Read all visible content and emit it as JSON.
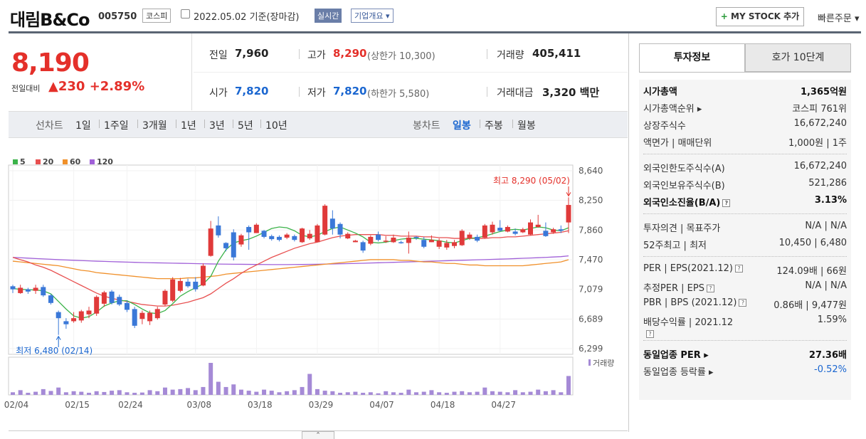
{
  "header": {
    "name": "대림B&Co",
    "code": "005750",
    "market": "코스피",
    "date": "2022.05.02 기준(장마감)",
    "realtime": "실시간",
    "company_info": "기업개요 ▾",
    "mystock": "MY STOCK 추가",
    "mystock_plus": "+",
    "quick_order": "빠른주문 ▾"
  },
  "price": {
    "current": "8,190",
    "diff_label": "전일대비",
    "diff_value": "▲230",
    "diff_pct": "+2.89%"
  },
  "stats": {
    "prev_label": "전일",
    "prev": "7,960",
    "high_label": "고가",
    "high": "8,290",
    "high_sub": "(상한가 10,300)",
    "vol_label": "거래량",
    "vol": "405,411",
    "open_label": "시가",
    "open": "7,820",
    "low_label": "저가",
    "low": "7,820",
    "low_sub": "(하한가 5,580)",
    "amt_label": "거래대금",
    "amt": "3,320 백만"
  },
  "toolbar": {
    "line_label": "선차트",
    "line_periods": [
      "1일",
      "1주일",
      "3개월",
      "1년",
      "3년",
      "5년",
      "10년"
    ],
    "candle_label": "봉차트",
    "candle_periods": [
      "일봉",
      "주봉",
      "월봉"
    ]
  },
  "chart_data": {
    "type": "candlestick",
    "legend": [
      {
        "name": "5",
        "color": "#3cb34a"
      },
      {
        "name": "20",
        "color": "#e85050"
      },
      {
        "name": "60",
        "color": "#f0902a"
      },
      {
        "name": "120",
        "color": "#a060d8"
      }
    ],
    "y_ticks": [
      "8,640",
      "8,250",
      "7,860",
      "7,470",
      "7,079",
      "6,689",
      "6,299"
    ],
    "ylim": [
      6299,
      8640
    ],
    "x_ticks": [
      "02/04",
      "02/15",
      "02/24",
      "03/08",
      "03/18",
      "03/29",
      "04/07",
      "04/18",
      "04/27"
    ],
    "high_annotation": "최고 8,290 (05/02)",
    "low_annotation": "최저 6,480 (02/14)",
    "volume_label": "거래량",
    "candles": [
      [
        7120,
        7080,
        7140,
        7030
      ],
      [
        7030,
        7100,
        7140,
        7020
      ],
      [
        7080,
        7050,
        7100,
        7020
      ],
      [
        7060,
        7100,
        7140,
        7020
      ],
      [
        7110,
        7000,
        7140,
        6980
      ],
      [
        7000,
        6900,
        7020,
        6880
      ],
      [
        6780,
        6700,
        6800,
        6480
      ],
      [
        6660,
        6620,
        6700,
        6560
      ],
      [
        6660,
        6700,
        6780,
        6640
      ],
      [
        6670,
        6790,
        6810,
        6640
      ],
      [
        6750,
        6800,
        6850,
        6700
      ],
      [
        6760,
        6980,
        7000,
        6730
      ],
      [
        6890,
        7040,
        7060,
        6850
      ],
      [
        7050,
        6900,
        7070,
        6880
      ],
      [
        6980,
        6880,
        7010,
        6860
      ],
      [
        6900,
        6810,
        6930,
        6780
      ],
      [
        6820,
        6600,
        6850,
        6570
      ],
      [
        6690,
        6770,
        6800,
        6620
      ],
      [
        6660,
        6770,
        6800,
        6610
      ],
      [
        6700,
        6820,
        6850,
        6680
      ],
      [
        6880,
        7060,
        7080,
        6860
      ],
      [
        6930,
        7210,
        7240,
        6910
      ],
      [
        7060,
        7190,
        7230,
        7040
      ],
      [
        7180,
        7120,
        7220,
        7100
      ],
      [
        7180,
        7080,
        7240,
        7050
      ],
      [
        7130,
        7390,
        7420,
        7120
      ],
      [
        7520,
        7880,
        7980,
        7510
      ],
      [
        7920,
        7790,
        8040,
        7760
      ],
      [
        7690,
        7620,
        7700,
        7580
      ],
      [
        7830,
        7500,
        7870,
        7460
      ],
      [
        7670,
        7790,
        7810,
        7640
      ],
      [
        7900,
        7830,
        7920,
        7600
      ],
      [
        7820,
        7930,
        7950,
        7820
      ],
      [
        7850,
        7770,
        7860,
        7750
      ],
      [
        7780,
        7740,
        7800,
        7720
      ],
      [
        7770,
        7730,
        7790,
        7710
      ],
      [
        7760,
        7800,
        7820,
        7740
      ],
      [
        7780,
        7730,
        7800,
        7710
      ],
      [
        7700,
        7880,
        7890,
        7690
      ],
      [
        7750,
        7810,
        7860,
        7730
      ],
      [
        7700,
        7920,
        7940,
        7700
      ],
      [
        7800,
        8180,
        8200,
        7790
      ],
      [
        8010,
        7880,
        8120,
        7800
      ],
      [
        7940,
        7800,
        7960,
        7750
      ],
      [
        7750,
        7810,
        7830,
        7740
      ],
      [
        7700,
        7720,
        7730,
        7700
      ],
      [
        7700,
        7590,
        7720,
        7560
      ],
      [
        7680,
        7770,
        7790,
        7660
      ],
      [
        7800,
        7730,
        7840,
        7710
      ],
      [
        7710,
        7720,
        7780,
        7690
      ],
      [
        7700,
        7760,
        7800,
        7690
      ],
      [
        7700,
        7690,
        7720,
        7680
      ],
      [
        7690,
        7760,
        7840,
        7550
      ],
      [
        7770,
        7760,
        7780,
        7730
      ],
      [
        7730,
        7640,
        7770,
        7620
      ],
      [
        7700,
        7730,
        7790,
        7700
      ],
      [
        7640,
        7720,
        7750,
        7610
      ],
      [
        7630,
        7690,
        7730,
        7600
      ],
      [
        7650,
        7700,
        7730,
        7620
      ],
      [
        7660,
        7850,
        7870,
        7650
      ],
      [
        7750,
        7800,
        7830,
        7730
      ],
      [
        7770,
        7720,
        7800,
        7700
      ],
      [
        7760,
        7920,
        7940,
        7750
      ],
      [
        7830,
        7930,
        7970,
        7800
      ],
      [
        7890,
        7850,
        7990,
        7840
      ],
      [
        7840,
        7900,
        7920,
        7830
      ],
      [
        7840,
        7810,
        7880,
        7790
      ],
      [
        7830,
        7870,
        7890,
        7820
      ],
      [
        7800,
        7960,
        8000,
        7790
      ],
      [
        7900,
        7930,
        8060,
        7890
      ],
      [
        7850,
        7780,
        7960,
        7770
      ],
      [
        7830,
        7870,
        7890,
        7810
      ],
      [
        7870,
        7850,
        7920,
        7820
      ],
      [
        7960,
        8190,
        8290,
        7820
      ]
    ],
    "ma5": [
      7090,
      7080,
      7075,
      7070,
      7060,
      7020,
      6920,
      6820,
      6730,
      6700,
      6720,
      6780,
      6860,
      6900,
      6930,
      6930,
      6880,
      6820,
      6770,
      6760,
      6800,
      6890,
      6990,
      7050,
      7100,
      7150,
      7250,
      7450,
      7600,
      7690,
      7720,
      7740,
      7780,
      7830,
      7880,
      7900,
      7890,
      7850,
      7790,
      7770,
      7790,
      7840,
      7880,
      7900,
      7860,
      7820,
      7770,
      7700,
      7690,
      7700,
      7720,
      7740,
      7750,
      7750,
      7740,
      7730,
      7720,
      7700,
      7690,
      7720,
      7750,
      7760,
      7780,
      7810,
      7840,
      7860,
      7870,
      7860,
      7880,
      7900,
      7890,
      7860,
      7850,
      7890
    ],
    "ma20": [
      7500,
      7470,
      7440,
      7400,
      7370,
      7330,
      7280,
      7230,
      7180,
      7130,
      7080,
      7030,
      6990,
      6960,
      6940,
      6920,
      6900,
      6880,
      6870,
      6860,
      6860,
      6870,
      6890,
      6910,
      6940,
      6970,
      7020,
      7090,
      7160,
      7220,
      7290,
      7350,
      7400,
      7450,
      7500,
      7540,
      7580,
      7620,
      7650,
      7680,
      7700,
      7730,
      7760,
      7780,
      7790,
      7800,
      7800,
      7800,
      7800,
      7790,
      7790,
      7780,
      7780,
      7780,
      7770,
      7770,
      7760,
      7760,
      7750,
      7750,
      7750,
      7750,
      7750,
      7760,
      7760,
      7770,
      7770,
      7780,
      7790,
      7800,
      7810,
      7820,
      7830,
      7850
    ],
    "ma60": [
      7450,
      7440,
      7430,
      7420,
      7410,
      7400,
      7390,
      7370,
      7350,
      7330,
      7320,
      7300,
      7290,
      7280,
      7270,
      7260,
      7250,
      7240,
      7230,
      7220,
      7220,
      7220,
      7220,
      7230,
      7230,
      7240,
      7250,
      7260,
      7280,
      7290,
      7300,
      7310,
      7320,
      7330,
      7340,
      7350,
      7360,
      7370,
      7380,
      7390,
      7400,
      7410,
      7420,
      7430,
      7440,
      7450,
      7460,
      7470,
      7470,
      7470,
      7470,
      7460,
      7460,
      7450,
      7440,
      7440,
      7430,
      7420,
      7420,
      7410,
      7400,
      7400,
      7390,
      7390,
      7390,
      7390,
      7390,
      7390,
      7400,
      7410,
      7420,
      7430,
      7440,
      7470
    ],
    "ma120": [
      7500,
      7495,
      7490,
      7485,
      7480,
      7475,
      7470,
      7466,
      7462,
      7458,
      7454,
      7450,
      7447,
      7444,
      7441,
      7438,
      7435,
      7432,
      7430,
      7428,
      7426,
      7424,
      7422,
      7420,
      7418,
      7416,
      7414,
      7412,
      7411,
      7410,
      7409,
      7408,
      7407,
      7406,
      7405,
      7405,
      7405,
      7406,
      7407,
      7408,
      7410,
      7412,
      7414,
      7416,
      7418,
      7420,
      7423,
      7426,
      7429,
      7432,
      7435,
      7438,
      7441,
      7444,
      7447,
      7450,
      7453,
      7456,
      7459,
      7462,
      7465,
      7468,
      7471,
      7474,
      7477,
      7480,
      7484,
      7488,
      7492,
      7496,
      7500,
      7505,
      7510,
      7520
    ],
    "volume": [
      10,
      18,
      8,
      12,
      22,
      15,
      28,
      10,
      14,
      12,
      8,
      14,
      11,
      16,
      18,
      10,
      8,
      9,
      18,
      14,
      28,
      20,
      22,
      26,
      18,
      30,
      122,
      50,
      30,
      40,
      20,
      16,
      12,
      20,
      16,
      10,
      14,
      18,
      30,
      80,
      22,
      16,
      14,
      8,
      10,
      12,
      8,
      10,
      6,
      14,
      10,
      8,
      20,
      10,
      12,
      18,
      10,
      8,
      12,
      14,
      10,
      12,
      28,
      14,
      12,
      10,
      18,
      10,
      12,
      20,
      14,
      18,
      10,
      72
    ]
  },
  "invest": {
    "tab_active": "투자정보",
    "tab_other": "호가 10단계",
    "rows1": [
      {
        "label": "시가총액",
        "value": "1,365억원"
      },
      {
        "label": "시가총액순위 ▸",
        "value": "코스피 761위"
      },
      {
        "label": "상장주식수",
        "value": "16,672,240"
      },
      {
        "label": "액면가 | 매매단위",
        "value": "1,000원 | 1주"
      }
    ],
    "rows2": [
      {
        "label": "외국인한도주식수(A)",
        "value": "16,672,240"
      },
      {
        "label": "외국인보유주식수(B)",
        "value": "521,286"
      },
      {
        "label": "외국인소진율(B/A)",
        "value": "3.13%"
      }
    ],
    "rows3": [
      {
        "label": "투자의견 | 목표주가",
        "value": "N/A | N/A"
      },
      {
        "label": "52주최고 | 최저",
        "value": "10,450 | 6,480"
      }
    ],
    "rows4": [
      {
        "label": "PER | EPS(2021.12)",
        "value": "124.09배 | 66원"
      },
      {
        "label": "추정PER | EPS",
        "value": "N/A | N/A"
      },
      {
        "label": "PBR | BPS (2021.12)",
        "value": "0.86배 | 9,477원"
      },
      {
        "label": "배당수익률 | 2021.12",
        "value": "1.59%"
      }
    ],
    "rows5": [
      {
        "label": "동일업종 PER ▸",
        "value": "27.36배"
      },
      {
        "label": "동일업종 등락률 ▸",
        "value": "-0.52%"
      }
    ],
    "help": "?"
  },
  "collapse": "⌃"
}
